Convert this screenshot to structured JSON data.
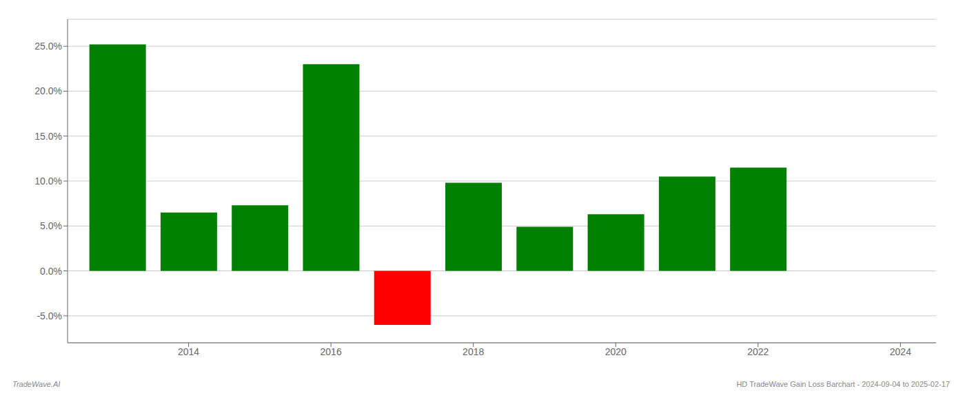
{
  "chart_data": {
    "type": "bar",
    "x": [
      2013,
      2014,
      2015,
      2016,
      2017,
      2018,
      2019,
      2020,
      2021,
      2022
    ],
    "values": [
      25.2,
      6.5,
      7.3,
      23.0,
      -6.0,
      9.8,
      4.9,
      6.3,
      10.5,
      11.5
    ],
    "colors": [
      "#008000",
      "#008000",
      "#008000",
      "#008000",
      "#ff0000",
      "#008000",
      "#008000",
      "#008000",
      "#008000",
      "#008000"
    ],
    "xlim": [
      2012.3,
      2024.5
    ],
    "xticks": [
      2014,
      2016,
      2018,
      2020,
      2022,
      2024
    ],
    "ylim": [
      -8,
      28
    ],
    "yticks": [
      {
        "value": -5.0,
        "label": "-5.0%"
      },
      {
        "value": 0.0,
        "label": "0.0%"
      },
      {
        "value": 5.0,
        "label": "5.0%"
      },
      {
        "value": 10.0,
        "label": "10.0%"
      },
      {
        "value": 15.0,
        "label": "15.0%"
      },
      {
        "value": 20.0,
        "label": "20.0%"
      },
      {
        "value": 25.0,
        "label": "25.0%"
      }
    ],
    "grid": true,
    "annotations": [
      "TradeWave.AI",
      "HD TradeWave Gain Loss Barchart - 2024-09-04 to 2025-02-17"
    ]
  }
}
